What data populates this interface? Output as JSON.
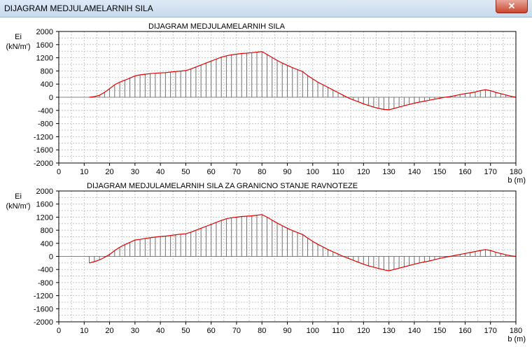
{
  "window": {
    "title": "DIJAGRAM MEDJULAMELARNIH SILA",
    "close_glyph": "✕"
  },
  "chart_data": [
    {
      "type": "area",
      "title": "DIJAGRAM MEDJULAMELARNIH SILA",
      "ylabel": "Ei",
      "yunit": "(kN/m')",
      "xlabel": "b (m)",
      "xlim": [
        0,
        180
      ],
      "ylim": [
        -2000,
        2000
      ],
      "xticks": [
        0,
        10,
        20,
        30,
        40,
        50,
        60,
        70,
        80,
        90,
        100,
        110,
        120,
        130,
        140,
        150,
        160,
        170,
        180
      ],
      "yticks": [
        2000,
        1600,
        1200,
        800,
        400,
        0,
        -400,
        -800,
        -1200,
        -1600,
        -2000
      ],
      "grid": true,
      "line_color": "#e00000",
      "hatch_color": "#707070",
      "x": [
        12,
        14,
        16,
        18,
        20,
        22,
        24,
        26,
        28,
        30,
        32,
        34,
        36,
        38,
        40,
        42,
        44,
        46,
        48,
        50,
        52,
        54,
        56,
        58,
        60,
        62,
        64,
        66,
        68,
        70,
        72,
        74,
        76,
        78,
        80,
        82,
        84,
        86,
        88,
        90,
        92,
        94,
        96,
        98,
        100,
        102,
        104,
        106,
        108,
        110,
        112,
        114,
        116,
        118,
        120,
        122,
        124,
        126,
        128,
        130,
        132,
        134,
        136,
        138,
        140,
        142,
        144,
        146,
        148,
        150,
        152,
        154,
        156,
        158,
        160,
        162,
        164,
        166,
        168,
        170,
        172,
        174,
        176,
        178,
        180
      ],
      "y": [
        0,
        20,
        60,
        150,
        260,
        380,
        460,
        520,
        580,
        650,
        680,
        700,
        720,
        730,
        740,
        750,
        765,
        780,
        795,
        810,
        860,
        920,
        980,
        1040,
        1100,
        1160,
        1220,
        1260,
        1290,
        1310,
        1330,
        1340,
        1355,
        1370,
        1390,
        1300,
        1210,
        1120,
        1040,
        970,
        900,
        840,
        780,
        660,
        560,
        460,
        380,
        300,
        220,
        140,
        60,
        -20,
        -80,
        -140,
        -200,
        -250,
        -300,
        -340,
        -370,
        -380,
        -340,
        -300,
        -260,
        -220,
        -180,
        -150,
        -120,
        -90,
        -60,
        -30,
        0,
        20,
        50,
        80,
        110,
        130,
        160,
        200,
        230,
        200,
        150,
        110,
        70,
        30,
        0
      ]
    },
    {
      "type": "area",
      "title": "DIJAGRAM MEDJULAMELARNIH SILA ZA GRANICNO STANJE RAVNOTEZE",
      "ylabel": "Ei",
      "yunit": "(kN/m')",
      "xlabel": "b (m)",
      "xlim": [
        0,
        180
      ],
      "ylim": [
        -2000,
        2000
      ],
      "xticks": [
        0,
        10,
        20,
        30,
        40,
        50,
        60,
        70,
        80,
        90,
        100,
        110,
        120,
        130,
        140,
        150,
        160,
        170,
        180
      ],
      "yticks": [
        2000,
        1600,
        1200,
        800,
        400,
        0,
        -400,
        -800,
        -1200,
        -1600,
        -2000
      ],
      "grid": true,
      "line_color": "#e00000",
      "hatch_color": "#707070",
      "x": [
        12,
        14,
        16,
        18,
        20,
        22,
        24,
        26,
        28,
        30,
        32,
        34,
        36,
        38,
        40,
        42,
        44,
        46,
        48,
        50,
        52,
        54,
        56,
        58,
        60,
        62,
        64,
        66,
        68,
        70,
        72,
        74,
        76,
        78,
        80,
        82,
        84,
        86,
        88,
        90,
        92,
        94,
        96,
        98,
        100,
        102,
        104,
        106,
        108,
        110,
        112,
        114,
        116,
        118,
        120,
        122,
        124,
        126,
        128,
        130,
        132,
        134,
        136,
        138,
        140,
        142,
        144,
        146,
        148,
        150,
        152,
        154,
        156,
        158,
        160,
        162,
        164,
        166,
        168,
        170,
        172,
        174,
        176,
        178,
        180
      ],
      "y": [
        -200,
        -160,
        -110,
        -30,
        60,
        180,
        280,
        360,
        430,
        500,
        520,
        550,
        570,
        590,
        610,
        620,
        640,
        660,
        680,
        690,
        740,
        800,
        860,
        920,
        980,
        1040,
        1100,
        1150,
        1180,
        1200,
        1220,
        1230,
        1240,
        1260,
        1280,
        1200,
        1110,
        1020,
        940,
        860,
        790,
        730,
        670,
        560,
        460,
        370,
        290,
        210,
        140,
        70,
        0,
        -60,
        -120,
        -180,
        -240,
        -290,
        -330,
        -370,
        -410,
        -440,
        -400,
        -360,
        -320,
        -280,
        -240,
        -200,
        -170,
        -140,
        -100,
        -60,
        -30,
        0,
        30,
        60,
        90,
        120,
        150,
        180,
        210,
        180,
        130,
        90,
        50,
        20,
        0
      ]
    }
  ]
}
